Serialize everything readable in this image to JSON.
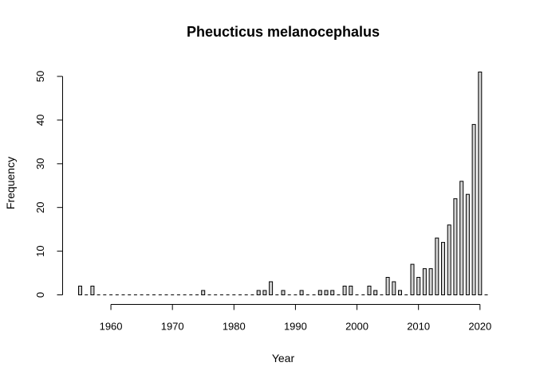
{
  "chart_data": {
    "type": "bar",
    "title": "Pheucticus melanocephalus",
    "xlabel": "Year",
    "ylabel": "Frequency",
    "x": [
      1955,
      1956,
      1957,
      1958,
      1959,
      1960,
      1961,
      1962,
      1963,
      1964,
      1965,
      1966,
      1967,
      1968,
      1969,
      1970,
      1971,
      1972,
      1973,
      1974,
      1975,
      1976,
      1977,
      1978,
      1979,
      1980,
      1981,
      1982,
      1983,
      1984,
      1985,
      1986,
      1987,
      1988,
      1989,
      1990,
      1991,
      1992,
      1993,
      1994,
      1995,
      1996,
      1997,
      1998,
      1999,
      2000,
      2001,
      2002,
      2003,
      2004,
      2005,
      2006,
      2007,
      2008,
      2009,
      2010,
      2011,
      2012,
      2013,
      2014,
      2015,
      2016,
      2017,
      2018,
      2019,
      2020,
      2021
    ],
    "values": [
      2,
      0,
      2,
      0,
      0,
      0,
      0,
      0,
      0,
      0,
      0,
      0,
      0,
      0,
      0,
      0,
      0,
      0,
      0,
      0,
      1,
      0,
      0,
      0,
      0,
      0,
      0,
      0,
      0,
      1,
      1,
      3,
      0,
      1,
      0,
      0,
      1,
      0,
      0,
      1,
      1,
      1,
      0,
      2,
      2,
      0,
      0,
      2,
      1,
      0,
      4,
      3,
      1,
      0,
      7,
      4,
      6,
      6,
      13,
      12,
      16,
      22,
      26,
      23,
      39,
      51,
      0
    ],
    "xticks": [
      1960,
      1970,
      1980,
      1990,
      2000,
      2010,
      2020
    ],
    "yticks": [
      0,
      10,
      20,
      30,
      40,
      50
    ],
    "xlim": [
      1955,
      2021
    ],
    "ylim": [
      0,
      51
    ],
    "grid": false,
    "legend": "none"
  }
}
